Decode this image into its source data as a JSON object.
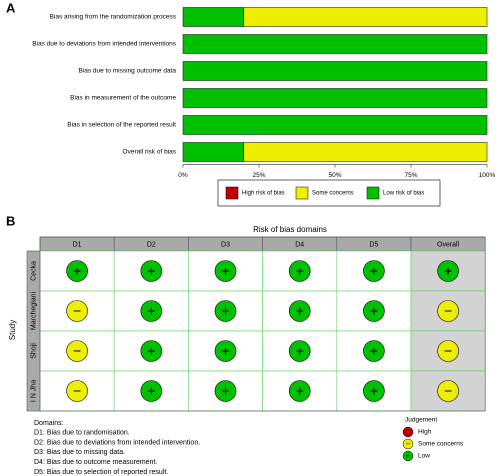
{
  "chart_data": [
    {
      "type": "bar",
      "orientation": "horizontal",
      "stacked": true,
      "label": "A",
      "categories": [
        "Bias arising from the randomization process",
        "Bias due to deviations from intended interventions",
        "Bias due to missing outcome data",
        "Bias in measurement of the outcome",
        "Bias in selection of the reported result",
        "Overall risk of bias"
      ],
      "series": [
        {
          "name": "High risk of bias",
          "color": "#c00000",
          "values": [
            0,
            0,
            0,
            0,
            0,
            0
          ]
        },
        {
          "name": "Some concerns",
          "color": "#eeee00",
          "values": [
            80,
            0,
            0,
            0,
            0,
            80
          ]
        },
        {
          "name": "Low risk of bias",
          "color": "#00c000",
          "values": [
            20,
            100,
            100,
            100,
            100,
            20
          ]
        }
      ],
      "xlim": [
        0,
        100
      ],
      "xticks": [
        {
          "value": 0,
          "label": "0%"
        },
        {
          "value": 25,
          "label": "25%"
        },
        {
          "value": 50,
          "label": "50%"
        },
        {
          "value": 75,
          "label": "75%"
        },
        {
          "value": 100,
          "label": "100%"
        }
      ],
      "legend": "bottom"
    },
    {
      "type": "traffic-light",
      "label": "B",
      "title": "Risk of bias domains",
      "ylabel": "Study",
      "columns": [
        "D1",
        "D2",
        "D3",
        "D4",
        "D5",
        "Overall"
      ],
      "rows": [
        "Cecka",
        "Marchegiani",
        "Shoji",
        "I N Jha"
      ],
      "judgements": [
        [
          "+",
          "+",
          "+",
          "+",
          "+",
          "+"
        ],
        [
          "−",
          "+",
          "+",
          "+",
          "+",
          "−"
        ],
        [
          "−",
          "+",
          "+",
          "+",
          "+",
          "−"
        ],
        [
          "−",
          "+",
          "+",
          "+",
          "+",
          "−"
        ]
      ],
      "legend_title": "Judgement",
      "legend": [
        {
          "label": "High",
          "color": "#c00000"
        },
        {
          "symbol": "−",
          "label": "Some concerns",
          "color": "#eeee00"
        },
        {
          "symbol": "+",
          "label": "Low",
          "color": "#00c000"
        }
      ],
      "notes": [
        "Domains:",
        "D1: Bias due to randomisation.",
        "D2: Bias due to deviations from intended intervention.",
        "D3: Bias due to missing data.",
        "D4: Bias due to outcome measurement.",
        "D5: Bias due to selection of reported result."
      ]
    }
  ]
}
